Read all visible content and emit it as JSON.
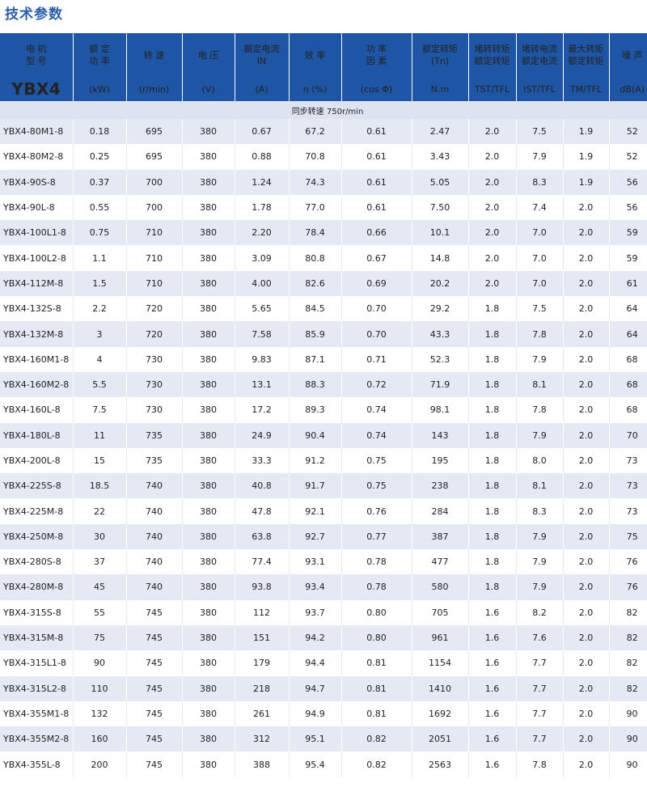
{
  "title": "技术参数",
  "header": {
    "row1": [
      [
        "电 机",
        "型 号"
      ],
      [
        "额 定",
        "功 率"
      ],
      [
        "转 速"
      ],
      [
        "电 压"
      ],
      [
        "额定电流",
        "IN"
      ],
      [
        "效 率"
      ],
      [
        "功 率",
        "因 素"
      ],
      [
        "额定转矩",
        "(Tn)"
      ],
      [
        "堵转转矩",
        "额定转矩"
      ],
      [
        "堵转电流",
        "额定电流"
      ],
      [
        "最大转矩",
        "额定转矩"
      ],
      [
        "噪 声"
      ]
    ],
    "row2": [
      "YBX4",
      "(kW)",
      "(r/min)",
      "(V)",
      "(A)",
      "η (%)",
      "(cos Φ)",
      "N.m",
      "TST/TFL",
      "IST/TFL",
      "TM/TFL",
      "dB(A)"
    ]
  },
  "sync_speed": "同步转速   750r/min",
  "rows": [
    [
      "YBX4-80M1-8",
      "0.18",
      "695",
      "380",
      "0.67",
      "67.2",
      "0.61",
      "2.47",
      "2.0",
      "7.5",
      "1.9",
      "52"
    ],
    [
      "YBX4-80M2-8",
      "0.25",
      "695",
      "380",
      "0.88",
      "70.8",
      "0.61",
      "3.43",
      "2.0",
      "7.9",
      "1.9",
      "52"
    ],
    [
      "YBX4-90S-8",
      "0.37",
      "700",
      "380",
      "1.24",
      "74.3",
      "0.61",
      "5.05",
      "2.0",
      "8.3",
      "1.9",
      "56"
    ],
    [
      "YBX4-90L-8",
      "0.55",
      "700",
      "380",
      "1.78",
      "77.0",
      "0.61",
      "7.50",
      "2.0",
      "7.4",
      "2.0",
      "56"
    ],
    [
      "YBX4-100L1-8",
      "0.75",
      "710",
      "380",
      "2.20",
      "78.4",
      "0.66",
      "10.1",
      "2.0",
      "7.0",
      "2.0",
      "59"
    ],
    [
      "YBX4-100L2-8",
      "1.1",
      "710",
      "380",
      "3.09",
      "80.8",
      "0.67",
      "14.8",
      "2.0",
      "7.0",
      "2.0",
      "59"
    ],
    [
      "YBX4-112M-8",
      "1.5",
      "710",
      "380",
      "4.00",
      "82.6",
      "0.69",
      "20.2",
      "2.0",
      "7.0",
      "2.0",
      "61"
    ],
    [
      "YBX4-132S-8",
      "2.2",
      "720",
      "380",
      "5.65",
      "84.5",
      "0.70",
      "29.2",
      "1.8",
      "7.5",
      "2.0",
      "64"
    ],
    [
      "YBX4-132M-8",
      "3",
      "720",
      "380",
      "7.58",
      "85.9",
      "0.70",
      "43.3",
      "1.8",
      "7.8",
      "2.0",
      "64"
    ],
    [
      "YBX4-160M1-8",
      "4",
      "730",
      "380",
      "9.83",
      "87.1",
      "0.71",
      "52.3",
      "1.8",
      "7.9",
      "2.0",
      "68"
    ],
    [
      "YBX4-160M2-8",
      "5.5",
      "730",
      "380",
      "13.1",
      "88.3",
      "0.72",
      "71.9",
      "1.8",
      "8.1",
      "2.0",
      "68"
    ],
    [
      "YBX4-160L-8",
      "7.5",
      "730",
      "380",
      "17.2",
      "89.3",
      "0.74",
      "98.1",
      "1.8",
      "7.8",
      "2.0",
      "68"
    ],
    [
      "YBX4-180L-8",
      "11",
      "735",
      "380",
      "24.9",
      "90.4",
      "0.74",
      "143",
      "1.8",
      "7.9",
      "2.0",
      "70"
    ],
    [
      "YBX4-200L-8",
      "15",
      "735",
      "380",
      "33.3",
      "91.2",
      "0.75",
      "195",
      "1.8",
      "8.0",
      "2.0",
      "73"
    ],
    [
      "YBX4-225S-8",
      "18.5",
      "740",
      "380",
      "40.8",
      "91.7",
      "0.75",
      "238",
      "1.8",
      "8.1",
      "2.0",
      "73"
    ],
    [
      "YBX4-225M-8",
      "22",
      "740",
      "380",
      "47.8",
      "92.1",
      "0.76",
      "284",
      "1.8",
      "8.3",
      "2.0",
      "73"
    ],
    [
      "YBX4-250M-8",
      "30",
      "740",
      "380",
      "63.8",
      "92.7",
      "0.77",
      "387",
      "1.8",
      "7.9",
      "2.0",
      "75"
    ],
    [
      "YBX4-280S-8",
      "37",
      "740",
      "380",
      "77.4",
      "93.1",
      "0.78",
      "477",
      "1.8",
      "7.9",
      "2.0",
      "76"
    ],
    [
      "YBX4-280M-8",
      "45",
      "740",
      "380",
      "93.8",
      "93.4",
      "0.78",
      "580",
      "1.8",
      "7.9",
      "2.0",
      "76"
    ],
    [
      "YBX4-315S-8",
      "55",
      "745",
      "380",
      "112",
      "93.7",
      "0.80",
      "705",
      "1.6",
      "8.2",
      "2.0",
      "82"
    ],
    [
      "YBX4-315M-8",
      "75",
      "745",
      "380",
      "151",
      "94.2",
      "0.80",
      "961",
      "1.6",
      "7.6",
      "2.0",
      "82"
    ],
    [
      "YBX4-315L1-8",
      "90",
      "745",
      "380",
      "179",
      "94.4",
      "0.81",
      "1154",
      "1.6",
      "7.7",
      "2.0",
      "82"
    ],
    [
      "YBX4-315L2-8",
      "110",
      "745",
      "380",
      "218",
      "94.7",
      "0.81",
      "1410",
      "1.6",
      "7.7",
      "2.0",
      "82"
    ],
    [
      "YBX4-355M1-8",
      "132",
      "745",
      "380",
      "261",
      "94.9",
      "0.81",
      "1692",
      "1.6",
      "7.7",
      "2.0",
      "90"
    ],
    [
      "YBX4-355M2-8",
      "160",
      "745",
      "380",
      "312",
      "95.1",
      "0.82",
      "2051",
      "1.6",
      "7.7",
      "2.0",
      "90"
    ],
    [
      "YBX4-355L-8",
      "200",
      "745",
      "380",
      "388",
      "95.4",
      "0.82",
      "2563",
      "1.6",
      "7.8",
      "2.0",
      "90"
    ]
  ],
  "colors": {
    "header_bg": "#1f55a5",
    "title": "#2f5fa8",
    "stripe": "#e4e9f4",
    "sync_bg": "#dde3f0"
  }
}
